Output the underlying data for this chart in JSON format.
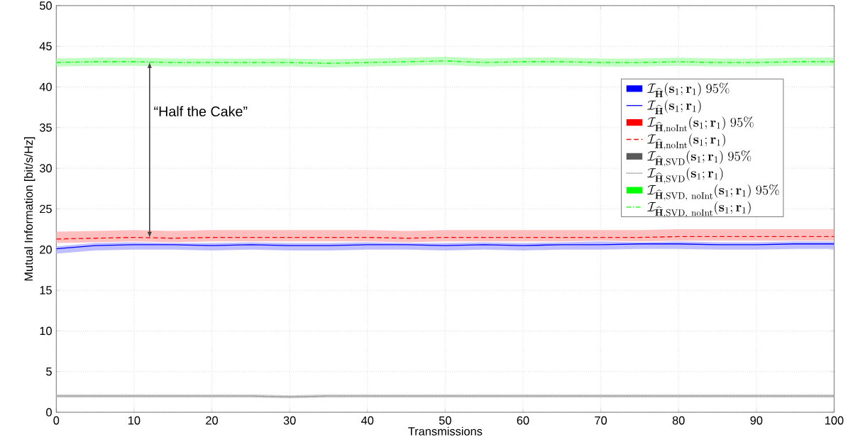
{
  "chart_data": {
    "type": "line",
    "xlabel": "Transmissions",
    "ylabel": "Mutual Information [bit/s/Hz]",
    "xlim": [
      0,
      100
    ],
    "xticks": [
      0,
      10,
      20,
      30,
      40,
      50,
      60,
      70,
      80,
      90,
      100
    ],
    "ylim": [
      0,
      50
    ],
    "yticks": [
      0,
      5,
      10,
      15,
      20,
      25,
      30,
      35,
      40,
      45,
      50
    ],
    "grid": true,
    "legend": "top right",
    "marker": "none",
    "x": [
      0,
      5,
      10,
      15,
      20,
      25,
      30,
      35,
      40,
      45,
      50,
      55,
      60,
      65,
      70,
      75,
      80,
      85,
      90,
      95,
      100
    ],
    "annotations": [
      "“Half the Cake”",
      "\\mathcal{I}_{\\widehat{\\mathbf{H}}}(\\mathbf{s}_1;\\mathbf{r}_1)\\ 95\\%",
      "\\mathcal{I}_{\\widehat{\\mathbf{H}},\\mathrm{noInt}}(\\mathbf{s}_1;\\mathbf{r}_1)\\ 95\\%",
      "\\mathcal{I}_{\\widehat{\\mathbf{H}},\\mathrm{SVD}}(\\mathbf{s}_1;\\mathbf{r}_1)\\ 95\\%",
      "\\mathcal{I}_{\\widehat{\\mathbf{H}},\\mathrm{SVD,\\ noInt}}(\\mathbf{s}_1;\\mathbf{r}_1)\\ 95\\%"
    ],
    "series": [
      {
        "name": "\\mathcal{I}_{\\widehat{\\mathbf{H}}}(\\mathbf{s}_1;\\mathbf{r}_1)",
        "line_style": "solid",
        "color": "#0000ff",
        "values": [
          20.1,
          20.5,
          20.6,
          20.6,
          20.5,
          20.6,
          20.5,
          20.5,
          20.6,
          20.6,
          20.5,
          20.6,
          20.5,
          20.6,
          20.6,
          20.7,
          20.7,
          20.6,
          20.6,
          20.7,
          20.7
        ],
        "lower": [
          19.5,
          19.9,
          20.0,
          20.0,
          19.9,
          20.0,
          19.9,
          19.9,
          20.0,
          20.0,
          19.9,
          20.0,
          19.9,
          20.0,
          20.0,
          20.1,
          20.1,
          20.0,
          20.0,
          20.1,
          20.1
        ],
        "upper": [
          20.4,
          20.8,
          20.9,
          20.8,
          20.8,
          20.9,
          20.8,
          20.8,
          20.9,
          20.8,
          20.8,
          20.9,
          20.8,
          20.9,
          21.0,
          20.9,
          21.0,
          20.9,
          20.9,
          21.0,
          21.0
        ]
      },
      {
        "name": "\\mathcal{I}_{\\widehat{\\mathbf{H}},\\mathrm{noInt}}(\\mathbf{s}_1;\\mathbf{r}_1)",
        "line_style": "dashed",
        "color": "#ff0000",
        "values": [
          21.3,
          21.4,
          21.5,
          21.4,
          21.5,
          21.5,
          21.5,
          21.5,
          21.5,
          21.4,
          21.5,
          21.5,
          21.5,
          21.5,
          21.5,
          21.5,
          21.6,
          21.6,
          21.6,
          21.6,
          21.6
        ],
        "lower": [
          20.8,
          20.9,
          21.0,
          20.9,
          21.0,
          21.0,
          21.0,
          21.0,
          21.0,
          20.9,
          21.0,
          21.0,
          21.0,
          21.0,
          21.1,
          21.0,
          21.1,
          21.1,
          21.1,
          21.1,
          21.1
        ],
        "upper": [
          22.2,
          22.3,
          22.4,
          22.3,
          22.4,
          22.4,
          22.4,
          22.4,
          22.4,
          22.3,
          22.4,
          22.4,
          22.4,
          22.4,
          22.4,
          22.4,
          22.5,
          22.5,
          22.5,
          22.5,
          22.5
        ]
      },
      {
        "name": "\\mathcal{I}_{\\widehat{\\mathbf{H}},\\mathrm{SVD}}(\\mathbf{s}_1;\\mathbf{r}_1)",
        "line_style": "dotted",
        "color": "#595959",
        "values": [
          2.0,
          2.0,
          2.0,
          2.0,
          2.0,
          2.0,
          1.9,
          2.0,
          2.0,
          2.0,
          2.0,
          2.0,
          2.0,
          2.0,
          2.0,
          2.0,
          2.0,
          2.0,
          2.0,
          2.0,
          2.0
        ],
        "lower": [
          1.8,
          1.8,
          1.8,
          1.8,
          1.8,
          1.8,
          1.7,
          1.8,
          1.8,
          1.8,
          1.8,
          1.8,
          1.8,
          1.8,
          1.8,
          1.8,
          1.8,
          1.8,
          1.8,
          1.8,
          1.8
        ],
        "upper": [
          2.2,
          2.2,
          2.2,
          2.2,
          2.2,
          2.2,
          2.1,
          2.2,
          2.2,
          2.2,
          2.2,
          2.2,
          2.2,
          2.2,
          2.2,
          2.2,
          2.2,
          2.2,
          2.2,
          2.2,
          2.2
        ]
      },
      {
        "name": "\\mathcal{I}_{\\widehat{\\mathbf{H}},\\mathrm{SVD,\\ noInt}}(\\mathbf{s}_1;\\mathbf{r}_1)",
        "line_style": "dashdot",
        "color": "#00ff00",
        "values": [
          43.0,
          43.1,
          43.1,
          43.0,
          43.0,
          43.0,
          43.0,
          42.9,
          43.0,
          43.1,
          43.2,
          43.0,
          43.1,
          43.1,
          43.0,
          43.0,
          43.1,
          43.0,
          43.0,
          43.1,
          43.1
        ],
        "lower": [
          42.5,
          42.6,
          42.6,
          42.5,
          42.5,
          42.5,
          42.5,
          42.4,
          42.5,
          42.6,
          42.7,
          42.5,
          42.6,
          42.6,
          42.5,
          42.5,
          42.6,
          42.5,
          42.5,
          42.6,
          42.6
        ],
        "upper": [
          43.5,
          43.6,
          43.6,
          43.5,
          43.5,
          43.5,
          43.5,
          43.4,
          43.5,
          43.6,
          43.7,
          43.5,
          43.6,
          43.6,
          43.5,
          43.5,
          43.6,
          43.5,
          43.5,
          43.6,
          43.6
        ]
      }
    ]
  }
}
